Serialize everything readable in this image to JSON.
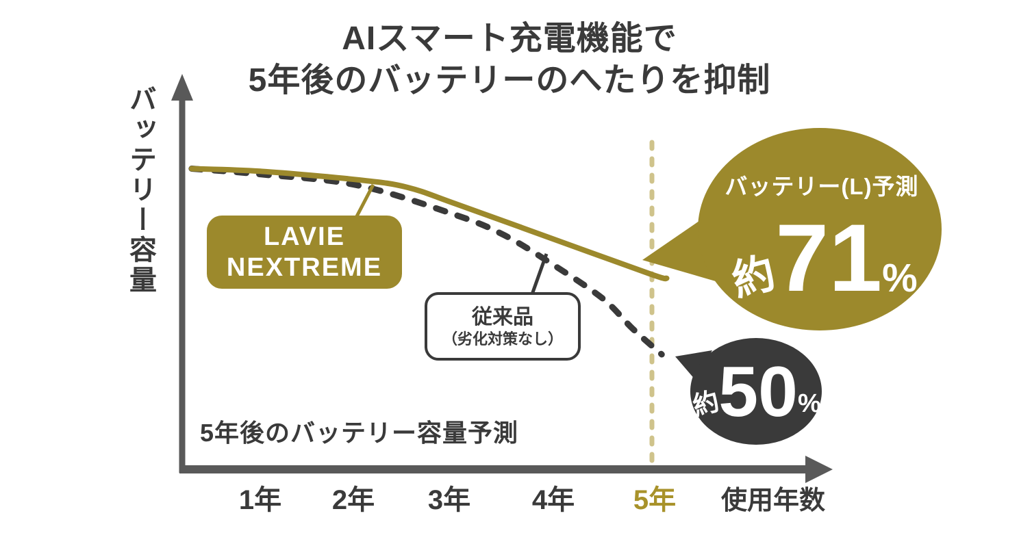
{
  "title": {
    "line1": "AIスマート充電機能で",
    "line2": "5年後のバッテリーのへたりを抑制"
  },
  "axes": {
    "y_label": "バッテリー容量",
    "x_label": "使用年数",
    "x_ticks": [
      "1年",
      "2年",
      "3年",
      "4年",
      "5年"
    ],
    "footnote": "5年後のバッテリー容量予測"
  },
  "labels": {
    "lavie_box": {
      "line1": "LAVIE",
      "line2": "NEXTREME"
    },
    "conventional_box": {
      "line1": "従来品",
      "line2": "（劣化対策なし）"
    }
  },
  "bubbles": {
    "lavie": {
      "caption": "バッテリー(L)予測",
      "prefix": "約",
      "value": "71",
      "unit": "%"
    },
    "conventional": {
      "prefix": "約",
      "value": "50",
      "unit": "%"
    }
  },
  "colors": {
    "olive": "#9c892c",
    "gold_tick": "#a8922a",
    "dark": "#3a3a3a",
    "axis_gray": "#595959",
    "guide_tan": "#cfc38b",
    "white": "#ffffff"
  },
  "chart_data": {
    "type": "line",
    "title": "AIスマート充電機能で5年後のバッテリーのへたりを抑制",
    "xlabel": "使用年数",
    "ylabel": "バッテリー容量",
    "categories": [
      "1年",
      "2年",
      "3年",
      "4年",
      "5年"
    ],
    "unit": "percent of original battery capacity",
    "ylim": [
      40,
      105
    ],
    "grid": false,
    "series": [
      {
        "name": "LAVIE NEXTREME",
        "style": "solid",
        "color": "#9c892c",
        "values": [
          99,
          97,
          91,
          81,
          71
        ],
        "end_label": "バッテリー(L)予測 約71%",
        "curve_points": [
          [
            0.3,
            100
          ],
          [
            1,
            99.3
          ],
          [
            2,
            97
          ],
          [
            2.5,
            95
          ],
          [
            3,
            90.5
          ],
          [
            4,
            81
          ],
          [
            5,
            71.5
          ],
          [
            5.15,
            70.5
          ]
        ]
      },
      {
        "name": "従来品（劣化対策なし）",
        "style": "dashed",
        "color": "#3a3a3a",
        "values": [
          98,
          95,
          88,
          74,
          50
        ],
        "end_label": "約50%",
        "curve_points": [
          [
            0.3,
            100
          ],
          [
            1,
            98.5
          ],
          [
            2,
            95.5
          ],
          [
            3,
            87.5
          ],
          [
            3.5,
            82
          ],
          [
            4,
            74
          ],
          [
            4.5,
            65
          ],
          [
            4.8,
            57
          ],
          [
            5.1,
            50
          ]
        ]
      }
    ],
    "annotations": [
      {
        "type": "vertical-guide",
        "x": 5,
        "label": "5年"
      }
    ]
  }
}
